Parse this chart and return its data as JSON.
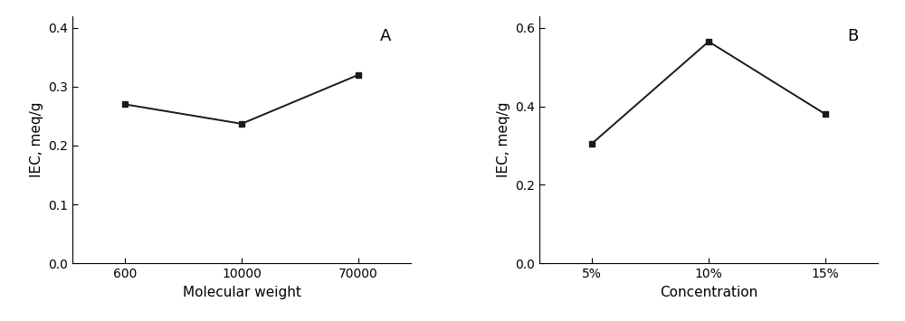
{
  "chart_A": {
    "x_positions": [
      0,
      1,
      2
    ],
    "x_labels": [
      "600",
      "10000",
      "70000"
    ],
    "y_values": [
      0.27,
      0.237,
      0.32
    ],
    "xlabel": "Molecular weight",
    "ylabel": "IEC, meq/g",
    "ylim": [
      0.0,
      0.42
    ],
    "yticks": [
      0.0,
      0.1,
      0.2,
      0.3,
      0.4
    ],
    "label": "A"
  },
  "chart_B": {
    "x_positions": [
      0,
      1,
      2
    ],
    "x_labels": [
      "5%",
      "10%",
      "15%"
    ],
    "y_values": [
      0.305,
      0.565,
      0.38
    ],
    "xlabel": "Concentration",
    "ylabel": "IEC, meq/g",
    "ylim": [
      0.0,
      0.63
    ],
    "yticks": [
      0.0,
      0.2,
      0.4,
      0.6
    ],
    "label": "B"
  },
  "line_color": "#1a1a1a",
  "marker": "s",
  "marker_size": 5,
  "marker_color": "#1a1a1a",
  "linewidth": 1.4,
  "background_color": "#ffffff",
  "label_fontsize": 11,
  "tick_fontsize": 10,
  "panel_label_fontsize": 13
}
